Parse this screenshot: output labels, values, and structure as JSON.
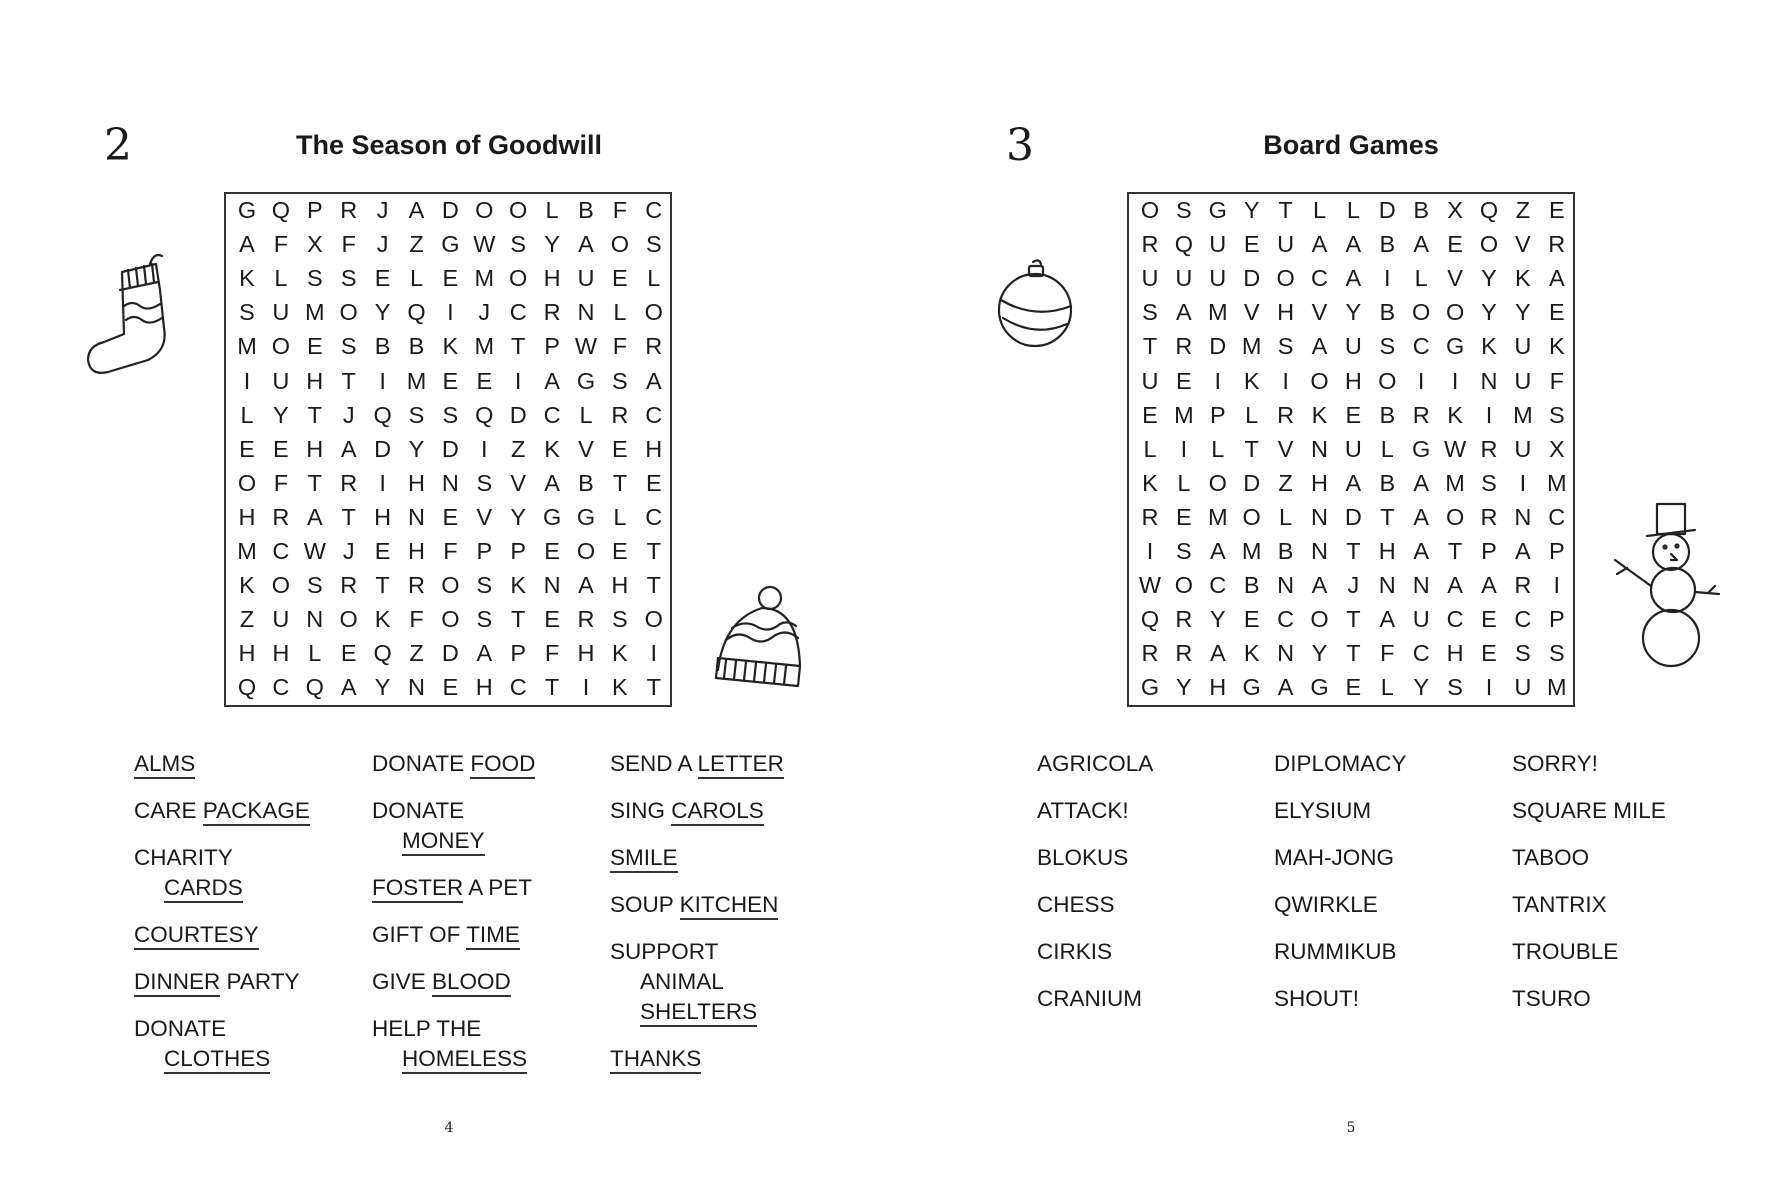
{
  "puzzles": [
    {
      "number": "2",
      "title": "The Season of Goodwill",
      "page_number": "4",
      "icons": [
        "stocking-icon",
        "bobble-hat-icon"
      ],
      "grid": [
        "GQPRJADOOLBFC",
        "AFXFJZGWSYAOS",
        "KLSSELEMOHUEL",
        "SUMOYQIJCRNLO",
        "MOESBBKMTPWFR",
        "IUHTIMEEIAGSA",
        "LYTJQSSQDCLRC",
        "EEHADYDIZKVEH",
        "OFTRIHNSVABTE",
        "HRATHNEVYGGLC",
        "MCWJEHFPPEOET",
        "KOSRTROSKNAHT",
        "ZUNOKFOSTERSO",
        "HHLEQZDAPFHKI",
        "QCQAYNEHCTIKT"
      ],
      "columns": [
        [
          [
            {
              "t": "",
              "u": "ALMS",
              "a": ""
            }
          ],
          [
            {
              "t": "CARE ",
              "u": "PACKAGE",
              "a": ""
            }
          ],
          [
            {
              "t": "CHARITY",
              "u": "",
              "a": ""
            },
            {
              "t": "",
              "u": "CARDS",
              "a": "",
              "ind": true
            }
          ],
          [
            {
              "t": "",
              "u": "COURTESY",
              "a": ""
            }
          ],
          [
            {
              "t": "",
              "u": "DINNER",
              "a": " PARTY"
            }
          ],
          [
            {
              "t": "DONATE",
              "u": "",
              "a": ""
            },
            {
              "t": "",
              "u": "CLOTHES",
              "a": "",
              "ind": true
            }
          ]
        ],
        [
          [
            {
              "t": "DONATE ",
              "u": "FOOD",
              "a": ""
            }
          ],
          [
            {
              "t": "DONATE",
              "u": "",
              "a": ""
            },
            {
              "t": "",
              "u": "MONEY",
              "a": "",
              "ind": true
            }
          ],
          [
            {
              "t": "",
              "u": "FOSTER",
              "a": " A PET"
            }
          ],
          [
            {
              "t": "GIFT OF ",
              "u": "TIME",
              "a": ""
            }
          ],
          [
            {
              "t": "GIVE ",
              "u": "BLOOD",
              "a": ""
            }
          ],
          [
            {
              "t": "HELP THE",
              "u": "",
              "a": ""
            },
            {
              "t": "",
              "u": "HOMELESS",
              "a": "",
              "ind": true
            }
          ]
        ],
        [
          [
            {
              "t": "SEND A ",
              "u": "LETTER",
              "a": ""
            }
          ],
          [
            {
              "t": "SING ",
              "u": "CAROLS",
              "a": ""
            }
          ],
          [
            {
              "t": "",
              "u": "SMILE",
              "a": ""
            }
          ],
          [
            {
              "t": "SOUP ",
              "u": "KITCHEN",
              "a": ""
            }
          ],
          [
            {
              "t": "SUPPORT",
              "u": "",
              "a": ""
            },
            {
              "t": "ANIMAL",
              "u": "",
              "a": "",
              "ind": true
            },
            {
              "t": "",
              "u": "SHELTERS",
              "a": "",
              "ind": true
            }
          ],
          [
            {
              "t": "",
              "u": "THANKS",
              "a": ""
            }
          ]
        ]
      ]
    },
    {
      "number": "3",
      "title": "Board Games",
      "page_number": "5",
      "icons": [
        "bauble-icon",
        "snowman-icon"
      ],
      "grid": [
        "OSGYTLLDBXQZE",
        "RQUEUAABAEOVR",
        "UUUDOCAILVYKA",
        "SAMVHVYBOOYYE",
        "TRDMSAUSCGKUK",
        "UEIKIOHOIINUF",
        "EMPLRKEBRKIMS",
        "LILTVNULGWRUX",
        "KLODZHABAMSIM",
        "REMOLNDTAORNC",
        "ISAMBNTHATPAP",
        "WOCBNAJNNAARI",
        "QRYECOTAUCECP",
        "RRAKNYTFCHESS",
        "GYHGAGELYSIUM"
      ],
      "columns": [
        [
          [
            {
              "t": "AGRICOLA",
              "u": "",
              "a": ""
            }
          ],
          [
            {
              "t": "ATTACK!",
              "u": "",
              "a": ""
            }
          ],
          [
            {
              "t": "BLOKUS",
              "u": "",
              "a": ""
            }
          ],
          [
            {
              "t": "CHESS",
              "u": "",
              "a": ""
            }
          ],
          [
            {
              "t": "CIRKIS",
              "u": "",
              "a": ""
            }
          ],
          [
            {
              "t": "CRANIUM",
              "u": "",
              "a": ""
            }
          ]
        ],
        [
          [
            {
              "t": "DIPLOMACY",
              "u": "",
              "a": ""
            }
          ],
          [
            {
              "t": "ELYSIUM",
              "u": "",
              "a": ""
            }
          ],
          [
            {
              "t": "MAH-JONG",
              "u": "",
              "a": ""
            }
          ],
          [
            {
              "t": "QWIRKLE",
              "u": "",
              "a": ""
            }
          ],
          [
            {
              "t": "RUMMIKUB",
              "u": "",
              "a": ""
            }
          ],
          [
            {
              "t": "SHOUT!",
              "u": "",
              "a": ""
            }
          ]
        ],
        [
          [
            {
              "t": "SORRY!",
              "u": "",
              "a": ""
            }
          ],
          [
            {
              "t": "SQUARE MILE",
              "u": "",
              "a": ""
            }
          ],
          [
            {
              "t": "TABOO",
              "u": "",
              "a": ""
            }
          ],
          [
            {
              "t": "TANTRIX",
              "u": "",
              "a": ""
            }
          ],
          [
            {
              "t": "TROUBLE",
              "u": "",
              "a": ""
            }
          ],
          [
            {
              "t": "TSURO",
              "u": "",
              "a": ""
            }
          ]
        ]
      ]
    }
  ]
}
